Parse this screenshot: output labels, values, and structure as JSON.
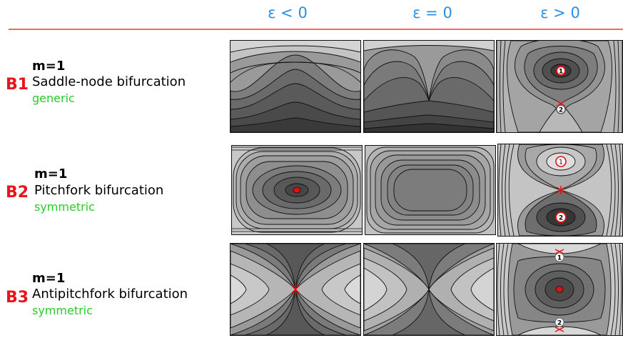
{
  "columns": [
    "ε < 0",
    "ε = 0",
    "ε > 0"
  ],
  "rows": [
    {
      "code": "B1",
      "m": "m=1",
      "name": "Saddle-node bifurcation",
      "type": "generic"
    },
    {
      "code": "B2",
      "m": "m=1",
      "name": "Pitchfork bifurcation",
      "type": "symmetric"
    },
    {
      "code": "B3",
      "m": "m=1",
      "name": "Antipitchfork bifurcation",
      "type": "symmetric"
    }
  ],
  "markers": {
    "b1_eps_pos": [
      "1",
      "2"
    ],
    "b2_eps_pos": [
      "1",
      "2"
    ],
    "b3_eps_pos": [
      "1",
      "2"
    ]
  },
  "colors": {
    "header": "#2d8fe3",
    "rule": "#e86a6a",
    "code": "#e8151b",
    "type": "#27cc27",
    "fixed_point": "#e01010"
  }
}
